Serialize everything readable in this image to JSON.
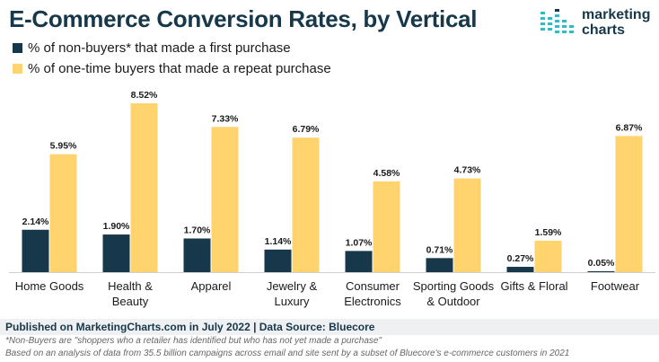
{
  "header": {
    "title": "E-Commerce Conversion Rates, by Vertical"
  },
  "brand": {
    "line1": "marketing",
    "line2": "charts",
    "icon": "bar-chart-logo-icon"
  },
  "colors": {
    "series1": "#17384a",
    "series2": "#ffd36e",
    "title": "#17384a",
    "axis": "#cfcfcf",
    "footer_bg": "#eef0f2"
  },
  "chart_data": {
    "type": "bar",
    "categories": [
      "Home Goods",
      "Health & Beauty",
      "Apparel",
      "Jewelry & Luxury",
      "Consumer Electronics",
      "Sporting Goods & Outdoor",
      "Gifts & Floral",
      "Footwear"
    ],
    "category_lines": [
      [
        "Home Goods"
      ],
      [
        "Health &",
        "Beauty"
      ],
      [
        "Apparel"
      ],
      [
        "Jewelry &",
        "Luxury"
      ],
      [
        "Consumer",
        "Electronics"
      ],
      [
        "Sporting Goods",
        "& Outdoor"
      ],
      [
        "Gifts & Floral"
      ],
      [
        "Footwear"
      ]
    ],
    "series": [
      {
        "name": "% of non-buyers* that made a first purchase",
        "values": [
          2.14,
          1.9,
          1.7,
          1.14,
          1.07,
          0.71,
          0.27,
          0.05
        ],
        "labels": [
          "2.14%",
          "1.90%",
          "1.70%",
          "1.14%",
          "1.07%",
          "0.71%",
          "0.27%",
          "0.05%"
        ]
      },
      {
        "name": "% of one-time buyers that made a repeat purchase",
        "values": [
          5.95,
          8.52,
          7.33,
          6.79,
          4.58,
          4.73,
          1.59,
          6.87
        ],
        "labels": [
          "5.95%",
          "8.52%",
          "7.33%",
          "6.79%",
          "4.58%",
          "4.73%",
          "1.59%",
          "6.87%"
        ]
      }
    ],
    "ylim": [
      0,
      8.52
    ],
    "grid": false,
    "legend": "top-left"
  },
  "footer": {
    "source": "Published on MarketingCharts.com in July 2022 | Data Source: Bluecore",
    "note1": "*Non-Buyers are \"shoppers who a retailer has identified but who has not yet made a purchase\"",
    "note2": "Based on an analysis of data from 35.5 billion campaigns across email and site sent by a subset of Bluecore's e-commerce customers in 2021"
  }
}
